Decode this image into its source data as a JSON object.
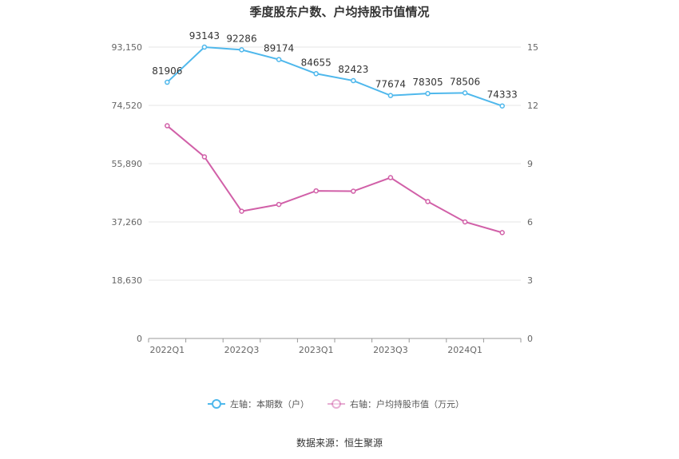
{
  "chart_data": {
    "type": "line",
    "title": "季度股东户数、户均持股市值情况",
    "categories": [
      "2022Q1",
      "2022Q2",
      "2022Q3",
      "2022Q4",
      "2023Q1",
      "2023Q2",
      "2023Q3",
      "2023Q4",
      "2024Q1",
      "2024Q2"
    ],
    "x_tick_labels": [
      "2022Q1",
      "2022Q3",
      "2023Q1",
      "2023Q3",
      "2024Q1"
    ],
    "left_axis": {
      "ticks": [
        "0",
        "18,630",
        "37,260",
        "55,890",
        "74,520",
        "93,150"
      ],
      "ylim": [
        0,
        93150
      ]
    },
    "right_axis": {
      "ticks": [
        "0",
        "3",
        "6",
        "9",
        "12",
        "15"
      ],
      "ylim": [
        0,
        15
      ]
    },
    "series": [
      {
        "name": "左轴：本期数（户）",
        "axis": "left",
        "color": "#4fb8ec",
        "values": [
          81906,
          93143,
          92286,
          89174,
          84655,
          82423,
          77674,
          78305,
          78506,
          74333
        ],
        "labels": [
          "81906",
          "93143",
          "92286",
          "89174",
          "84655",
          "82423",
          "77674",
          "78305",
          "78506",
          "74333"
        ]
      },
      {
        "name": "右轴：户均持股市值（万元）",
        "axis": "right",
        "color": "#d160a8",
        "values": [
          10.95,
          9.35,
          6.55,
          6.9,
          7.6,
          7.58,
          8.28,
          7.05,
          6.0,
          5.45
        ]
      }
    ],
    "legend_position": "bottom-center",
    "grid": true
  },
  "source_text": "数据来源：恒生聚源"
}
